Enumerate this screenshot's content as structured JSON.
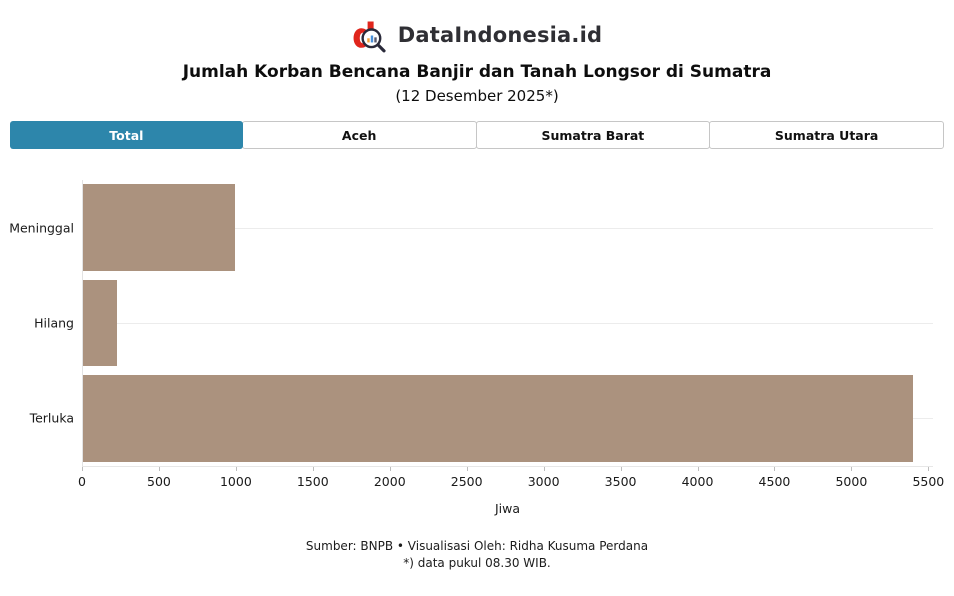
{
  "brand": {
    "name": "DataIndonesia.id"
  },
  "header": {
    "title": "Jumlah Korban Bencana Banjir dan Tanah Longsor di Sumatra",
    "subtitle": "(12 Desember 2025*)"
  },
  "tabs": [
    {
      "label": "Total",
      "active": true
    },
    {
      "label": "Aceh",
      "active": false
    },
    {
      "label": "Sumatra Barat",
      "active": false
    },
    {
      "label": "Sumatra Utara",
      "active": false
    }
  ],
  "chart_data": {
    "type": "bar",
    "orientation": "horizontal",
    "categories": [
      "Meninggal",
      "Hilang",
      "Terluka"
    ],
    "values": [
      990,
      220,
      5400
    ],
    "title": "Jumlah Korban Bencana Banjir dan Tanah Longsor di Sumatra (12 Desember 2025*)",
    "xlabel": "Jiwa",
    "ylabel": "",
    "xlim": [
      0,
      5500
    ],
    "xticks": [
      0,
      500,
      1000,
      1500,
      2000,
      2500,
      3000,
      3500,
      4000,
      4500,
      5000,
      5500
    ],
    "grid": "horizontal-category-lines",
    "legend": "none",
    "bar_color": "#ab927e"
  },
  "colors": {
    "accent_blue": "#2d86ab",
    "bar": "#ab927e",
    "logo_red": "#e0251c"
  },
  "footer": {
    "line1": "Sumber: BNPB • Visualisasi Oleh: Ridha Kusuma Perdana",
    "line2": "*) data pukul 08.30 WIB."
  }
}
